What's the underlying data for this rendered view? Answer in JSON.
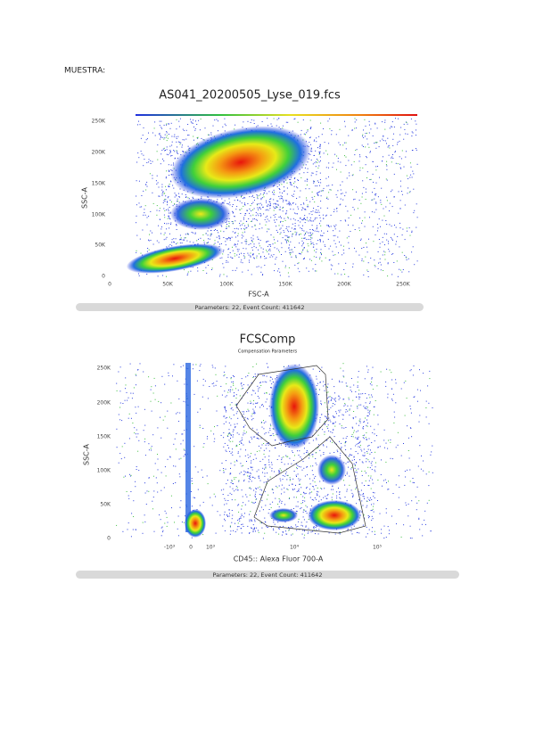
{
  "header": {
    "label": "MUESTRA:"
  },
  "plots": [
    {
      "title": "AS041_20200505_Lyse_019.fcs",
      "y_label": "SSC-A",
      "y_ticks": [
        "0",
        "50K",
        "100K",
        "150K",
        "200K",
        "250K"
      ],
      "x_label": "FSC-A",
      "x_ticks": [
        "0",
        "50K",
        "100K",
        "150K",
        "200K",
        "250K"
      ],
      "footer": "Parameters: 22, Event Count: 411642"
    },
    {
      "title": "FCSComp",
      "subtitle": "Compensation Parameters",
      "y_label": "SSC-A",
      "y_ticks": [
        "0",
        "50K",
        "100K",
        "150K",
        "200K",
        "250K"
      ],
      "x_label": "CD45:: Alexa Fluor 700-A",
      "x_ticks": [
        "-10³",
        "0",
        "10³",
        "10⁴",
        "10⁵"
      ],
      "footer": "Parameters: 22, Event Count: 411642"
    }
  ]
}
